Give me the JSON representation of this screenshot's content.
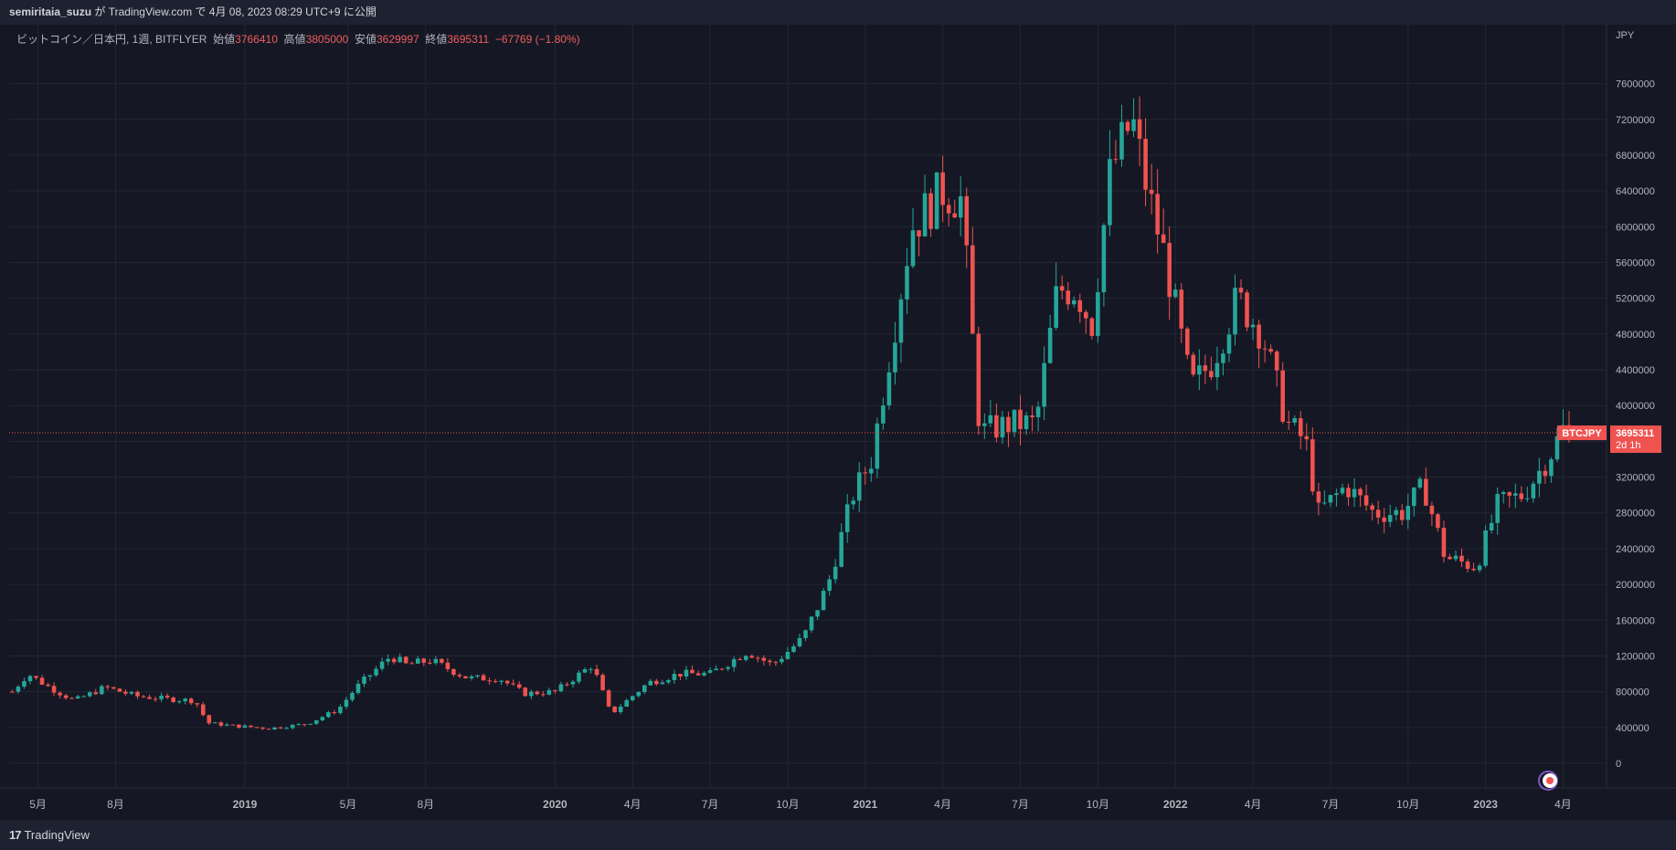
{
  "header": {
    "user": "semiritaia_suzu",
    "mid": " が TradingView.com で ",
    "date": "4月 08, 2023 08:29 UTC+9",
    "tail": " に公開"
  },
  "legend": {
    "symbol": "ビットコイン／日本円, 1週, BITFLYER",
    "open_label": "始値",
    "open": "3766410",
    "high_label": "高値",
    "high": "3805000",
    "low_label": "安値",
    "low": "3629997",
    "close_label": "終値",
    "close": "3695311",
    "change": "−67769 (−1.80%)"
  },
  "price_axis": {
    "unit": "JPY",
    "ticks": [
      "0",
      "400000",
      "800000",
      "1200000",
      "1600000",
      "2000000",
      "2400000",
      "2800000",
      "3200000",
      "3600000",
      "4000000",
      "4400000",
      "4800000",
      "5200000",
      "5600000",
      "6000000",
      "6400000",
      "6800000",
      "7200000",
      "7600000"
    ]
  },
  "time_axis": {
    "labels": [
      {
        "t": 2018.333,
        "label": "5月",
        "year": false
      },
      {
        "t": 2018.583,
        "label": "8月",
        "year": false
      },
      {
        "t": 2019.0,
        "label": "2019",
        "year": true
      },
      {
        "t": 2019.333,
        "label": "5月",
        "year": false
      },
      {
        "t": 2019.583,
        "label": "8月",
        "year": false
      },
      {
        "t": 2020.0,
        "label": "2020",
        "year": true
      },
      {
        "t": 2020.25,
        "label": "4月",
        "year": false
      },
      {
        "t": 2020.5,
        "label": "7月",
        "year": false
      },
      {
        "t": 2020.75,
        "label": "10月",
        "year": false
      },
      {
        "t": 2021.0,
        "label": "2021",
        "year": true
      },
      {
        "t": 2021.25,
        "label": "4月",
        "year": false
      },
      {
        "t": 2021.5,
        "label": "7月",
        "year": false
      },
      {
        "t": 2021.75,
        "label": "10月",
        "year": false
      },
      {
        "t": 2022.0,
        "label": "2022",
        "year": true
      },
      {
        "t": 2022.25,
        "label": "4月",
        "year": false
      },
      {
        "t": 2022.5,
        "label": "7月",
        "year": false
      },
      {
        "t": 2022.75,
        "label": "10月",
        "year": false
      },
      {
        "t": 2023.0,
        "label": "2023",
        "year": true
      },
      {
        "t": 2023.25,
        "label": "4月",
        "year": false
      }
    ]
  },
  "price_tag": {
    "symbol": "BTCJPY",
    "price": "3695311",
    "countdown": "2d 1h"
  },
  "footer": {
    "brand": "TradingView"
  },
  "colors": {
    "up": "#26a69a",
    "down": "#ef5350",
    "grid": "#222633",
    "bg": "#151824",
    "text": "#b2b5be",
    "last_line": "#ef5350"
  },
  "chart_data": {
    "type": "candlestick",
    "interval": "1W",
    "ylim": [
      0,
      7800000
    ],
    "xlim": [
      2018.24,
      2023.39
    ],
    "price_close_last": 3695311,
    "series": [
      {
        "t": 2018.25,
        "close": 800000
      },
      {
        "t": 2018.3,
        "close": 1000000
      },
      {
        "t": 2018.37,
        "close": 850000
      },
      {
        "t": 2018.45,
        "close": 700000
      },
      {
        "t": 2018.55,
        "close": 850000
      },
      {
        "t": 2018.65,
        "close": 750000
      },
      {
        "t": 2018.75,
        "close": 720000
      },
      {
        "t": 2018.84,
        "close": 700000
      },
      {
        "t": 2018.88,
        "close": 450000
      },
      {
        "t": 2018.96,
        "close": 420000
      },
      {
        "t": 2019.08,
        "close": 390000
      },
      {
        "t": 2019.2,
        "close": 440000
      },
      {
        "t": 2019.3,
        "close": 600000
      },
      {
        "t": 2019.36,
        "close": 850000
      },
      {
        "t": 2019.47,
        "close": 1200000
      },
      {
        "t": 2019.52,
        "close": 1100000
      },
      {
        "t": 2019.6,
        "close": 1150000
      },
      {
        "t": 2019.72,
        "close": 950000
      },
      {
        "t": 2019.82,
        "close": 950000
      },
      {
        "t": 2019.9,
        "close": 780000
      },
      {
        "t": 2020.0,
        "close": 800000
      },
      {
        "t": 2020.12,
        "close": 1100000
      },
      {
        "t": 2020.18,
        "close": 550000
      },
      {
        "t": 2020.3,
        "close": 900000
      },
      {
        "t": 2020.4,
        "close": 1000000
      },
      {
        "t": 2020.5,
        "close": 1000000
      },
      {
        "t": 2020.62,
        "close": 1250000
      },
      {
        "t": 2020.7,
        "close": 1100000
      },
      {
        "t": 2020.8,
        "close": 1400000
      },
      {
        "t": 2020.88,
        "close": 2000000
      },
      {
        "t": 2020.96,
        "close": 3000000
      },
      {
        "t": 2021.02,
        "close": 3400000
      },
      {
        "t": 2021.1,
        "close": 5000000
      },
      {
        "t": 2021.15,
        "close": 6000000
      },
      {
        "t": 2021.25,
        "close": 6400000
      },
      {
        "t": 2021.31,
        "close": 6300000
      },
      {
        "t": 2021.37,
        "close": 3700000
      },
      {
        "t": 2021.47,
        "close": 3800000
      },
      {
        "t": 2021.55,
        "close": 3800000
      },
      {
        "t": 2021.62,
        "close": 5300000
      },
      {
        "t": 2021.68,
        "close": 5300000
      },
      {
        "t": 2021.73,
        "close": 4900000
      },
      {
        "t": 2021.79,
        "close": 6600000
      },
      {
        "t": 2021.86,
        "close": 7200000
      },
      {
        "t": 2021.91,
        "close": 6400000
      },
      {
        "t": 2021.97,
        "close": 5600000
      },
      {
        "t": 2022.05,
        "close": 4200000
      },
      {
        "t": 2022.12,
        "close": 4500000
      },
      {
        "t": 2022.2,
        "close": 5200000
      },
      {
        "t": 2022.28,
        "close": 4800000
      },
      {
        "t": 2022.36,
        "close": 3800000
      },
      {
        "t": 2022.42,
        "close": 3600000
      },
      {
        "t": 2022.46,
        "close": 2800000
      },
      {
        "t": 2022.55,
        "close": 3100000
      },
      {
        "t": 2022.64,
        "close": 2800000
      },
      {
        "t": 2022.73,
        "close": 2800000
      },
      {
        "t": 2022.8,
        "close": 3100000
      },
      {
        "t": 2022.87,
        "close": 2300000
      },
      {
        "t": 2022.97,
        "close": 2200000
      },
      {
        "t": 2023.04,
        "close": 2900000
      },
      {
        "t": 2023.12,
        "close": 3000000
      },
      {
        "t": 2023.2,
        "close": 3400000
      },
      {
        "t": 2023.26,
        "close": 3800000
      },
      {
        "t": 2023.27,
        "close": 3695311
      }
    ]
  }
}
